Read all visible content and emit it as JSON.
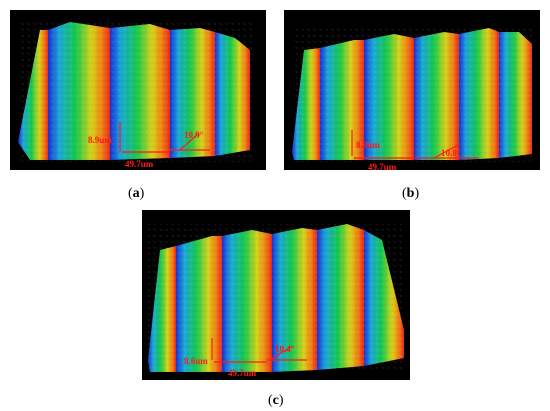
{
  "figure": {
    "panels": [
      {
        "id": "a",
        "caption": "a",
        "labels": {
          "height": "8.9um",
          "period": "49.7um",
          "angle": "10.9°"
        }
      },
      {
        "id": "b",
        "caption": "b",
        "labels": {
          "height": "8.9um",
          "period": "49.7um",
          "angle": "10.8°"
        }
      },
      {
        "id": "c",
        "caption": "c",
        "labels": {
          "height": "8.6um",
          "period": "49.7um",
          "angle": "10.4°"
        }
      }
    ],
    "colors": {
      "background": "#000000",
      "annotation": "#ff1a1a",
      "surface_low": "#1a2fd6",
      "surface_mid": "#16c94a",
      "surface_high": "#e8261a"
    }
  }
}
